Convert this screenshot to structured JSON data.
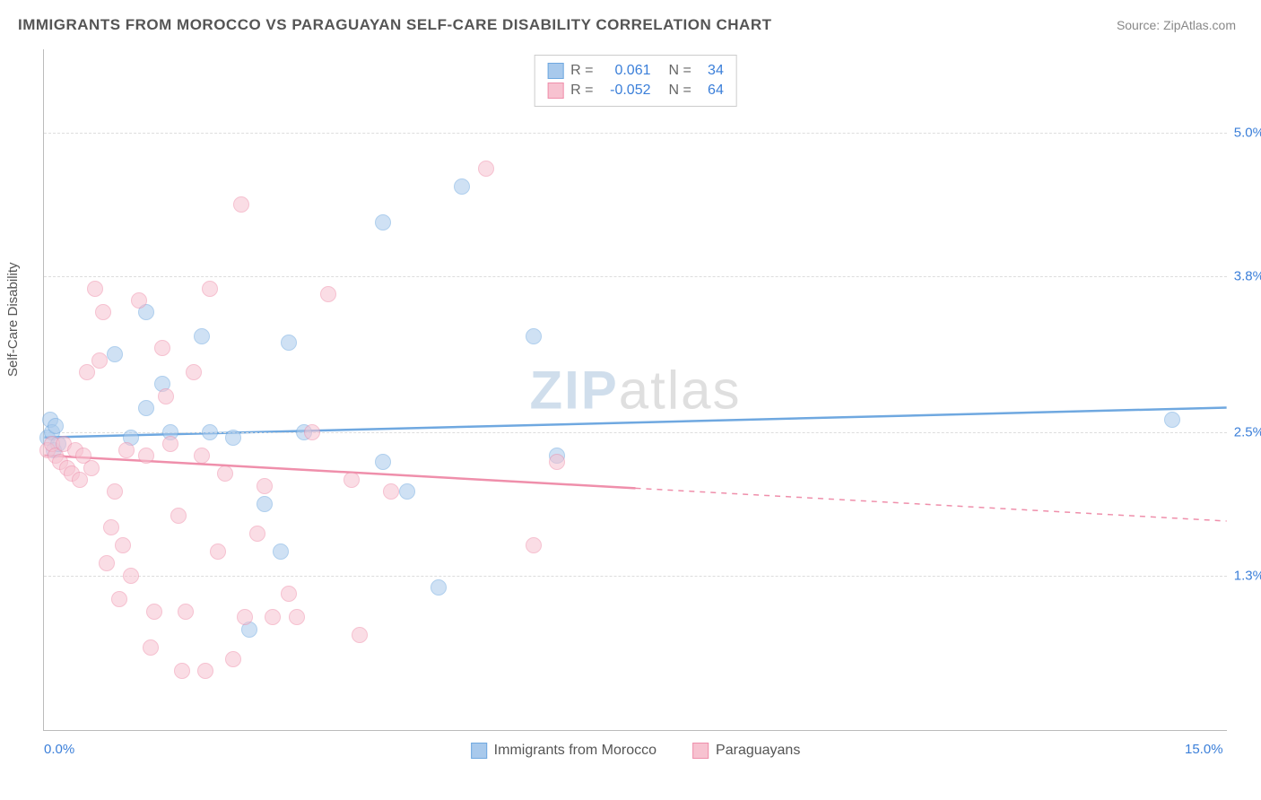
{
  "title": "IMMIGRANTS FROM MOROCCO VS PARAGUAYAN SELF-CARE DISABILITY CORRELATION CHART",
  "source_label": "Source: ZipAtlas.com",
  "y_axis_label": "Self-Care Disability",
  "watermark": {
    "prefix": "ZIP",
    "suffix": "atlas"
  },
  "chart": {
    "type": "scatter",
    "x_range": [
      0,
      15
    ],
    "y_range": [
      0,
      5.7
    ],
    "x_ticks": [
      {
        "value": 0,
        "label": "0.0%"
      },
      {
        "value": 15,
        "label": "15.0%"
      }
    ],
    "y_gridlines": [
      {
        "value": 1.3,
        "label": "1.3%"
      },
      {
        "value": 2.5,
        "label": "2.5%"
      },
      {
        "value": 3.8,
        "label": "3.8%"
      },
      {
        "value": 5.0,
        "label": "5.0%"
      }
    ],
    "background_color": "#ffffff",
    "grid_color": "#dddddd",
    "point_radius": 9,
    "point_opacity": 0.55,
    "series": [
      {
        "id": "morocco",
        "label": "Immigrants from Morocco",
        "color_fill": "#a8c9ec",
        "color_stroke": "#6fa8e0",
        "r": "0.061",
        "n": "34",
        "trend": {
          "y0": 2.45,
          "y1": 2.7,
          "x0": 0,
          "x1": 15,
          "width": 2.5,
          "solid_to_x": 15
        },
        "points": [
          [
            0.05,
            2.45
          ],
          [
            0.08,
            2.6
          ],
          [
            0.1,
            2.5
          ],
          [
            0.12,
            2.35
          ],
          [
            0.15,
            2.55
          ],
          [
            0.18,
            2.4
          ],
          [
            1.3,
            3.5
          ],
          [
            0.9,
            3.15
          ],
          [
            1.1,
            2.45
          ],
          [
            1.3,
            2.7
          ],
          [
            1.5,
            2.9
          ],
          [
            1.6,
            2.5
          ],
          [
            2.0,
            3.3
          ],
          [
            2.1,
            2.5
          ],
          [
            2.4,
            2.45
          ],
          [
            2.6,
            0.85
          ],
          [
            2.8,
            1.9
          ],
          [
            3.0,
            1.5
          ],
          [
            3.1,
            3.25
          ],
          [
            3.3,
            2.5
          ],
          [
            4.3,
            4.25
          ],
          [
            4.3,
            2.25
          ],
          [
            4.6,
            2.0
          ],
          [
            5.0,
            1.2
          ],
          [
            5.3,
            4.55
          ],
          [
            6.2,
            3.3
          ],
          [
            6.5,
            2.3
          ],
          [
            14.3,
            2.6
          ]
        ]
      },
      {
        "id": "paraguayans",
        "label": "Paraguayans",
        "color_fill": "#f7c2d0",
        "color_stroke": "#ef8fab",
        "r": "-0.052",
        "n": "64",
        "trend": {
          "y0": 2.3,
          "y1": 1.75,
          "x0": 0,
          "x1": 15,
          "width": 2.5,
          "solid_to_x": 7.5
        },
        "points": [
          [
            0.05,
            2.35
          ],
          [
            0.1,
            2.4
          ],
          [
            0.15,
            2.3
          ],
          [
            0.2,
            2.25
          ],
          [
            0.25,
            2.4
          ],
          [
            0.3,
            2.2
          ],
          [
            0.35,
            2.15
          ],
          [
            0.4,
            2.35
          ],
          [
            0.45,
            2.1
          ],
          [
            0.5,
            2.3
          ],
          [
            0.55,
            3.0
          ],
          [
            0.6,
            2.2
          ],
          [
            0.65,
            3.7
          ],
          [
            0.7,
            3.1
          ],
          [
            0.75,
            3.5
          ],
          [
            0.8,
            1.4
          ],
          [
            0.85,
            1.7
          ],
          [
            0.9,
            2.0
          ],
          [
            0.95,
            1.1
          ],
          [
            1.0,
            1.55
          ],
          [
            1.05,
            2.35
          ],
          [
            1.1,
            1.3
          ],
          [
            1.2,
            3.6
          ],
          [
            1.3,
            2.3
          ],
          [
            1.35,
            0.7
          ],
          [
            1.4,
            1.0
          ],
          [
            1.5,
            3.2
          ],
          [
            1.55,
            2.8
          ],
          [
            1.6,
            2.4
          ],
          [
            1.7,
            1.8
          ],
          [
            1.75,
            0.5
          ],
          [
            1.8,
            1.0
          ],
          [
            1.9,
            3.0
          ],
          [
            2.0,
            2.3
          ],
          [
            2.05,
            0.5
          ],
          [
            2.1,
            3.7
          ],
          [
            2.2,
            1.5
          ],
          [
            2.3,
            2.15
          ],
          [
            2.4,
            0.6
          ],
          [
            2.5,
            4.4
          ],
          [
            2.55,
            0.95
          ],
          [
            2.7,
            1.65
          ],
          [
            2.8,
            2.05
          ],
          [
            2.9,
            0.95
          ],
          [
            3.1,
            1.15
          ],
          [
            3.2,
            0.95
          ],
          [
            3.4,
            2.5
          ],
          [
            3.6,
            3.65
          ],
          [
            3.9,
            2.1
          ],
          [
            4.0,
            0.8
          ],
          [
            4.4,
            2.0
          ],
          [
            5.6,
            4.7
          ],
          [
            6.2,
            1.55
          ],
          [
            6.5,
            2.25
          ]
        ]
      }
    ],
    "legend_top": {
      "r_symbol": "R =",
      "n_symbol": "N ="
    }
  }
}
